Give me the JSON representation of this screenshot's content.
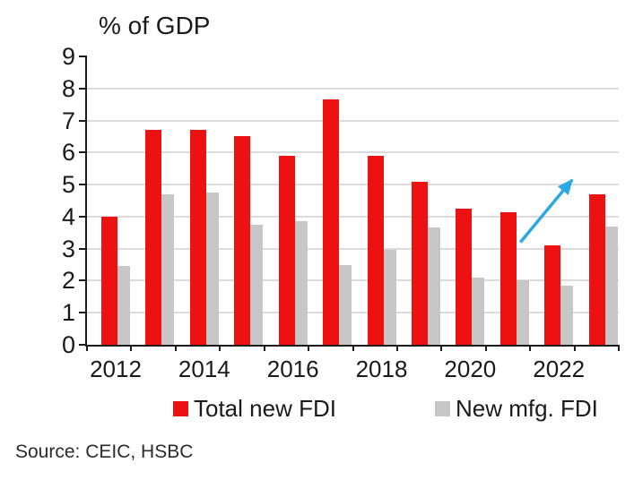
{
  "chart_data": {
    "type": "bar",
    "title": "% of GDP",
    "categories": [
      "2012",
      "2013",
      "2014",
      "2015",
      "2016",
      "2017",
      "2018",
      "2019",
      "2020",
      "2021",
      "2022",
      "2023"
    ],
    "series": [
      {
        "name": "Total new FDI",
        "color": "#ee1111",
        "values": [
          4.0,
          6.7,
          6.7,
          6.5,
          5.9,
          7.65,
          5.9,
          5.1,
          4.25,
          4.15,
          3.1,
          4.7
        ]
      },
      {
        "name": "New mfg. FDI",
        "color": "#c7c7c7",
        "values": [
          2.45,
          4.7,
          4.75,
          3.75,
          3.85,
          2.5,
          2.95,
          3.65,
          2.1,
          2.0,
          1.85,
          3.7
        ]
      }
    ],
    "ylim": [
      0,
      9
    ],
    "y_ticks": [
      0,
      1,
      2,
      3,
      4,
      5,
      6,
      7,
      8,
      9
    ],
    "x_tick_labels": [
      "2012",
      "2014",
      "2016",
      "2018",
      "2020",
      "2022"
    ],
    "grid": "horizontal",
    "legend_position": "bottom",
    "annotation": {
      "type": "arrow",
      "color": "#2aa9e2",
      "from": {
        "x_index": 9.78,
        "value": 3.2
      },
      "to": {
        "x_index": 10.95,
        "value": 5.15
      }
    }
  },
  "footer": {
    "source": "Source: CEIC, HSBC"
  }
}
